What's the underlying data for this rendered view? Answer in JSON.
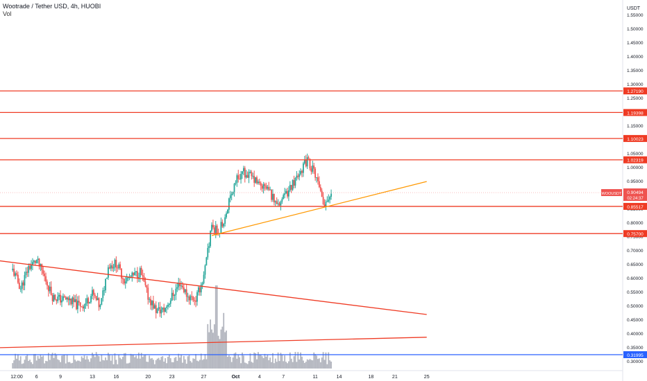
{
  "header": {
    "title": "Wootrade / Tether USD, 4h, HUOBI",
    "vol_label": "Vol"
  },
  "axis": {
    "unit": "USDT"
  },
  "colors": {
    "up": "#26a69a",
    "down": "#ef5350",
    "line_red": "#ef3b24",
    "line_orange": "#ff9800",
    "line_blue": "#2962ff",
    "volume": "#b2b5be"
  },
  "chart_data": {
    "type": "candlestick",
    "title": "Wootrade / Tether USD, 4h, HUOBI",
    "y_ticks": [
      "1.55000",
      "1.50000",
      "1.45000",
      "1.40000",
      "1.35000",
      "1.30000",
      "1.25000",
      "1.20000",
      "1.15000",
      "1.10000",
      "1.05000",
      "1.00000",
      "0.95000",
      "0.90000",
      "0.85000",
      "0.80000",
      "0.75000",
      "0.70000",
      "0.65000",
      "0.60000",
      "0.55000",
      "0.50000",
      "0.45000",
      "0.40000",
      "0.35000",
      "0.30000"
    ],
    "x_ticks": [
      "12:00",
      "6",
      "9",
      "13",
      "16",
      "20",
      "23",
      "27",
      "Oct",
      "4",
      "7",
      "11",
      "14",
      "18",
      "21",
      "25"
    ],
    "x_axis_dates": [
      "Sep 3 12:00",
      "Sep 6",
      "Sep 9",
      "Sep 13",
      "Sep 16",
      "Sep 20",
      "Sep 23",
      "Sep 27",
      "Oct 1",
      "Oct 4",
      "Oct 7",
      "Oct 11",
      "Oct 14",
      "Oct 18",
      "Oct 21",
      "Oct 25"
    ],
    "price_ohlc_anchors": [
      [
        "Sep 3 00:00",
        0.625
      ],
      [
        "Sep 4",
        0.56
      ],
      [
        "Sep 5",
        0.635
      ],
      [
        "Sep 6",
        0.66
      ],
      [
        "Sep 7",
        0.6
      ],
      [
        "Sep 8",
        0.53
      ],
      [
        "Sep 9",
        0.52
      ],
      [
        "Sep 10",
        0.52
      ],
      [
        "Sep 11",
        0.5
      ],
      [
        "Sep 12",
        0.5
      ],
      [
        "Sep 13",
        0.54
      ],
      [
        "Sep 14",
        0.49
      ],
      [
        "Sep 15",
        0.64
      ],
      [
        "Sep 16",
        0.65
      ],
      [
        "Sep 17",
        0.59
      ],
      [
        "Sep 18",
        0.6
      ],
      [
        "Sep 19",
        0.62
      ],
      [
        "Sep 20",
        0.53
      ],
      [
        "Sep 21",
        0.48
      ],
      [
        "Sep 22",
        0.48
      ],
      [
        "Sep 23",
        0.53
      ],
      [
        "Sep 24",
        0.58
      ],
      [
        "Sep 25",
        0.53
      ],
      [
        "Sep 26",
        0.52
      ],
      [
        "Sep 27",
        0.6
      ],
      [
        "Sep 28",
        0.78
      ],
      [
        "Sep 29",
        0.77
      ],
      [
        "Sep 30",
        0.85
      ],
      [
        "Oct 1",
        0.95
      ],
      [
        "Oct 2",
        0.98
      ],
      [
        "Oct 3",
        0.96
      ],
      [
        "Oct 4",
        0.93
      ],
      [
        "Oct 5",
        0.92
      ],
      [
        "Oct 6",
        0.87
      ],
      [
        "Oct 7",
        0.88
      ],
      [
        "Oct 8",
        0.93
      ],
      [
        "Oct 9",
        0.98
      ],
      [
        "Oct 10",
        1.02
      ],
      [
        "Oct 11",
        0.97
      ],
      [
        "Oct 12",
        0.86
      ],
      [
        "Oct 13",
        0.905
      ]
    ],
    "horizontal_levels": [
      {
        "price": 1.19398,
        "label": "1.19398",
        "color": "red"
      },
      {
        "price": 1.2719,
        "label": "1.27190",
        "color": "red"
      },
      {
        "price": 1.10023,
        "label": "1.10023",
        "color": "red"
      },
      {
        "price": 1.02319,
        "label": "1.02319",
        "color": "red"
      },
      {
        "price": 0.85517,
        "label": "0.85517",
        "color": "red"
      },
      {
        "price": 0.757,
        "label": "0.75700",
        "color": "red"
      },
      {
        "price": 0.31995,
        "label": "0.31995",
        "color": "blue"
      }
    ],
    "trend_lines": [
      {
        "name": "descending-red",
        "from": [
          "Sep 1",
          0.66
        ],
        "to": [
          "Oct 25",
          0.465
        ],
        "color": "red"
      },
      {
        "name": "ascending-red",
        "from": [
          "Sep 1",
          0.345
        ],
        "to": [
          "Oct 25",
          0.383
        ],
        "color": "red"
      },
      {
        "name": "ascending-orange",
        "from": [
          "Sep 28",
          0.75
        ],
        "to": [
          "Oct 25",
          0.945
        ],
        "color": "orange"
      }
    ],
    "last_price": {
      "symbol": "WOOUSDT",
      "value": "0.90494",
      "countdown": "02:24:37"
    },
    "grid": false,
    "legend": "top-left"
  }
}
